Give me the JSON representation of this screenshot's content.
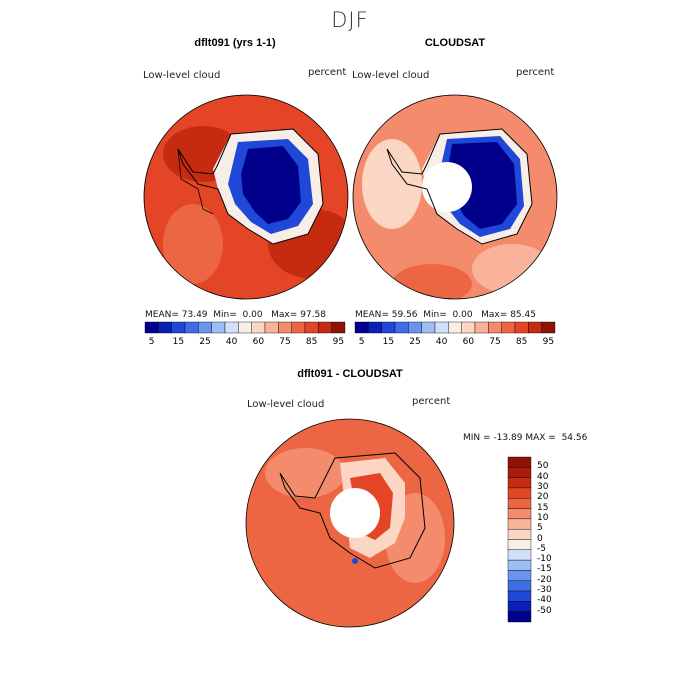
{
  "season": "DJF",
  "panels": [
    {
      "title": "dflt091 (yrs 1-1)",
      "field": "Low-level cloud",
      "units": "percent",
      "stats": {
        "mean": "73.49",
        "min": "0.00",
        "max": "97.58"
      }
    },
    {
      "title": "CLOUDSAT",
      "field": "Low-level cloud",
      "units": "percent",
      "stats": {
        "mean": "59.56",
        "min": "0.00",
        "max": "85.45"
      }
    }
  ],
  "diff_panel": {
    "title": "dflt091 - CLOUDSAT",
    "field": "Low-level cloud",
    "units": "percent",
    "stats": {
      "min": "-13.89",
      "max": "54.56"
    }
  },
  "labels": {
    "mean": "MEAN=",
    "min": "Min=",
    "max": "Max=",
    "MIN": "MIN =",
    "MAX": "MAX ="
  },
  "colorbar_top": {
    "colors": [
      "#00008b",
      "#0a1fb5",
      "#1f48d9",
      "#3d6ee8",
      "#6a95ef",
      "#9dbdf5",
      "#cfe0fa",
      "#f7eee8",
      "#fcd6c4",
      "#f9b39a",
      "#f48b6c",
      "#ed6644",
      "#e54527",
      "#c62b12",
      "#8f1207"
    ],
    "ticks": [
      "5",
      "15",
      "25",
      "40",
      "60",
      "75",
      "85",
      "95"
    ]
  },
  "colorbar_diff": {
    "colors": [
      "#00008b",
      "#0a1fb5",
      "#1f48d9",
      "#3d6ee8",
      "#6a95ef",
      "#9dbdf5",
      "#cfe0fa",
      "#f7eee8",
      "#fcd6c4",
      "#f9b39a",
      "#f48b6c",
      "#ed6644",
      "#e54527",
      "#c62b12",
      "#a61b0c",
      "#8f1207"
    ],
    "ticks": [
      "50",
      "40",
      "30",
      "20",
      "15",
      "10",
      "5",
      "0",
      "-5",
      "-10",
      "-15",
      "-20",
      "-30",
      "-40",
      "-50"
    ]
  },
  "map_colors": {
    "land_low": "#00008b",
    "land_mid": "#1f48d9",
    "pale": "#f7eee8",
    "ocean_model": "#e54527",
    "ocean_obs": "#f48b6c",
    "ocean_diff": "#ed6644",
    "hole": "#ffffff",
    "coast": "#000000"
  }
}
